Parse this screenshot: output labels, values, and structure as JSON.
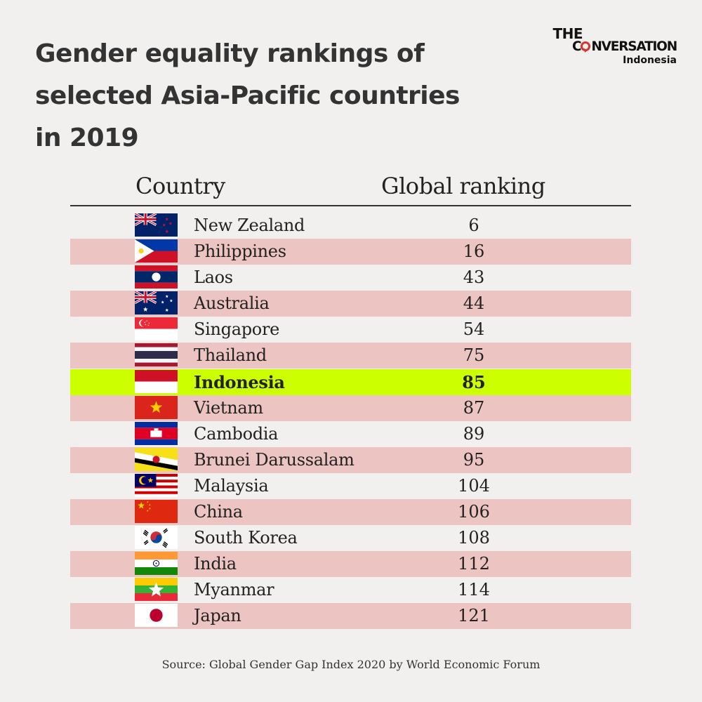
{
  "title": "Gender equality rankings of selected Asia-Pacific countries in 2019",
  "logo": {
    "line1": "THE",
    "line2_pre": "C",
    "line2_post": "NVERSATION",
    "line3": "Indonesia"
  },
  "chart_data": {
    "type": "table",
    "columns": [
      "Country",
      "Global ranking"
    ],
    "highlight": "Indonesia",
    "colors": {
      "background": "#f1f0ef",
      "stripe": "#ecc4c1",
      "highlight": "#ccff00",
      "logo_accent": "#d8352a"
    },
    "rows": [
      {
        "country": "New Zealand",
        "rank": "6",
        "flag": "new-zealand-flag"
      },
      {
        "country": "Philippines",
        "rank": "16",
        "flag": "philippines-flag"
      },
      {
        "country": "Laos",
        "rank": "43",
        "flag": "laos-flag"
      },
      {
        "country": "Australia",
        "rank": "44",
        "flag": "australia-flag"
      },
      {
        "country": "Singapore",
        "rank": "54",
        "flag": "singapore-flag"
      },
      {
        "country": "Thailand",
        "rank": "75",
        "flag": "thailand-flag"
      },
      {
        "country": "Indonesia",
        "rank": "85",
        "flag": "indonesia-flag"
      },
      {
        "country": "Vietnam",
        "rank": "87",
        "flag": "vietnam-flag"
      },
      {
        "country": "Cambodia",
        "rank": "89",
        "flag": "cambodia-flag"
      },
      {
        "country": "Brunei Darussalam",
        "rank": "95",
        "flag": "brunei-flag"
      },
      {
        "country": "Malaysia",
        "rank": "104",
        "flag": "malaysia-flag"
      },
      {
        "country": "China",
        "rank": "106",
        "flag": "china-flag"
      },
      {
        "country": "South Korea",
        "rank": "108",
        "flag": "south-korea-flag"
      },
      {
        "country": "India",
        "rank": "112",
        "flag": "india-flag"
      },
      {
        "country": "Myanmar",
        "rank": "114",
        "flag": "myanmar-flag"
      },
      {
        "country": "Japan",
        "rank": "121",
        "flag": "japan-flag"
      }
    ]
  },
  "source": "Source: Global Gender Gap Index 2020 by World Economic Forum"
}
